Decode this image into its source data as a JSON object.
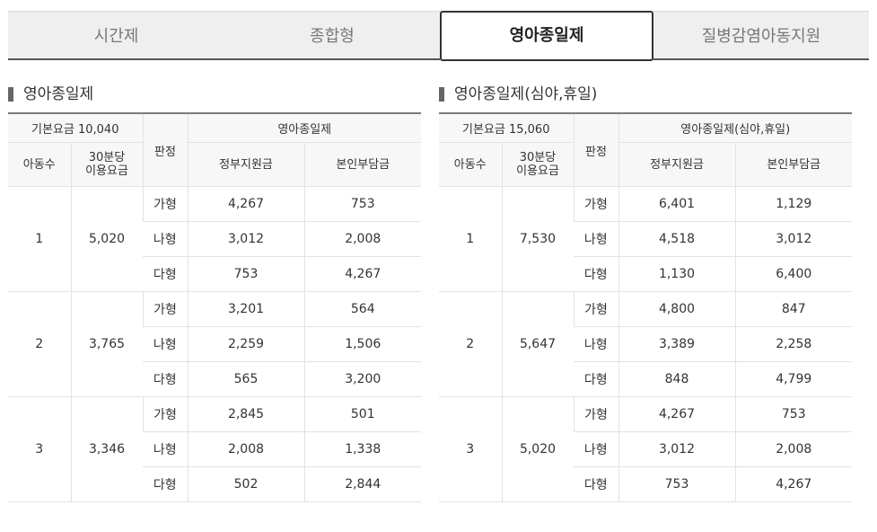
{
  "tabs": [
    {
      "label": "시간제"
    },
    {
      "label": "종합형"
    },
    {
      "label": "영아종일제"
    },
    {
      "label": "질병감염아동지원"
    }
  ],
  "active_tab": "영아종일제",
  "sections": [
    {
      "title": "영아종일제",
      "base_fee": "기본요금 10,040",
      "group_header": "영아종일제",
      "col_children": "아동수",
      "col_fee_line1": "30분당",
      "col_fee_line2": "이용요금",
      "col_grade": "판정",
      "col_gov": "정부지원금",
      "col_self": "본인부담금",
      "groups": [
        {
          "children": "1",
          "fee": "5,020",
          "rows": [
            {
              "grade": "가형",
              "gov": "4,267",
              "self": "753"
            },
            {
              "grade": "나형",
              "gov": "3,012",
              "self": "2,008"
            },
            {
              "grade": "다형",
              "gov": "753",
              "self": "4,267"
            }
          ]
        },
        {
          "children": "2",
          "fee": "3,765",
          "rows": [
            {
              "grade": "가형",
              "gov": "3,201",
              "self": "564"
            },
            {
              "grade": "나형",
              "gov": "2,259",
              "self": "1,506"
            },
            {
              "grade": "다형",
              "gov": "565",
              "self": "3,200"
            }
          ]
        },
        {
          "children": "3",
          "fee": "3,346",
          "rows": [
            {
              "grade": "가형",
              "gov": "2,845",
              "self": "501"
            },
            {
              "grade": "나형",
              "gov": "2,008",
              "self": "1,338"
            },
            {
              "grade": "다형",
              "gov": "502",
              "self": "2,844"
            }
          ]
        }
      ]
    },
    {
      "title": "영아종일제(심야,휴일)",
      "base_fee": "기본요금 15,060",
      "group_header": "영아종일제(심야,휴일)",
      "col_children": "아동수",
      "col_fee_line1": "30분당",
      "col_fee_line2": "이용요금",
      "col_grade": "판정",
      "col_gov": "정부지원금",
      "col_self": "본인부담금",
      "groups": [
        {
          "children": "1",
          "fee": "7,530",
          "rows": [
            {
              "grade": "가형",
              "gov": "6,401",
              "self": "1,129"
            },
            {
              "grade": "나형",
              "gov": "4,518",
              "self": "3,012"
            },
            {
              "grade": "다형",
              "gov": "1,130",
              "self": "6,400"
            }
          ]
        },
        {
          "children": "2",
          "fee": "5,647",
          "rows": [
            {
              "grade": "가형",
              "gov": "4,800",
              "self": "847"
            },
            {
              "grade": "나형",
              "gov": "3,389",
              "self": "2,258"
            },
            {
              "grade": "다형",
              "gov": "848",
              "self": "4,799"
            }
          ]
        },
        {
          "children": "3",
          "fee": "5,020",
          "rows": [
            {
              "grade": "가형",
              "gov": "4,267",
              "self": "753"
            },
            {
              "grade": "나형",
              "gov": "3,012",
              "self": "2,008"
            },
            {
              "grade": "다형",
              "gov": "753",
              "self": "4,267"
            }
          ]
        }
      ]
    }
  ]
}
